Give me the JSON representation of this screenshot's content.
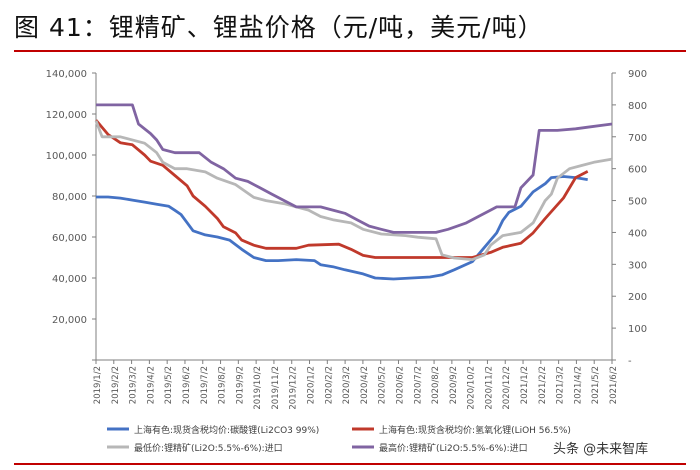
{
  "title": "图 41：锂精矿、锂盐价格（元/吨，美元/吨）",
  "watermark": "头条 @未来智库",
  "colors": {
    "rule": "#c00000"
  },
  "chart_data": {
    "type": "line",
    "title": "",
    "xlabel": "",
    "ylabel_left": "",
    "ylabel_right": "",
    "x_tick_labels": [
      "2019/1/2",
      "2019/2/2",
      "2019/3/2",
      "2019/4/2",
      "2019/5/2",
      "2019/6/2",
      "2019/7/2",
      "2019/8/2",
      "2019/9/2",
      "2019/10/2",
      "2019/11/2",
      "2019/12/2",
      "2020/1/2",
      "2020/2/2",
      "2020/3/2",
      "2020/4/2",
      "2020/5/2",
      "2020/6/2",
      "2020/7/2",
      "2020/8/2",
      "2020/9/2",
      "2020/10/2",
      "2020/11/2",
      "2020/12/2",
      "2021/1/2",
      "2021/2/2",
      "2021/3/2",
      "2021/4/2",
      "2021/5/2",
      "2021/6/2"
    ],
    "y_left": {
      "min": 0,
      "max": 140000,
      "ticks": [
        0,
        20000,
        40000,
        60000,
        80000,
        100000,
        120000,
        140000
      ],
      "tick_labels": [
        "",
        "20,000",
        "40,000",
        "60,000",
        "80,000",
        "100,000",
        "120,000",
        "140,000"
      ]
    },
    "y_right": {
      "min": 0,
      "max": 900,
      "ticks": [
        0,
        100,
        200,
        300,
        400,
        500,
        600,
        700,
        800,
        900
      ],
      "tick_labels": [
        "-",
        "100",
        "200",
        "300",
        "400",
        "500",
        "600",
        "700",
        "800",
        "900"
      ]
    },
    "grid": false,
    "legend_position": "bottom",
    "series": [
      {
        "name": "上海有色:现货含税均价:碳酸锂(Li2CO3 99%)",
        "axis": "left",
        "color": "#4472c4",
        "points": [
          [
            0,
            79500
          ],
          [
            2,
            79500
          ],
          [
            4,
            79000
          ],
          [
            6,
            78000
          ],
          [
            8,
            77000
          ],
          [
            10,
            76000
          ],
          [
            12,
            75000
          ],
          [
            13,
            73000
          ],
          [
            14,
            71000
          ],
          [
            15,
            67000
          ],
          [
            16,
            63000
          ],
          [
            18,
            61000
          ],
          [
            20,
            60000
          ],
          [
            22,
            58500
          ],
          [
            24,
            54000
          ],
          [
            26,
            50000
          ],
          [
            28,
            48500
          ],
          [
            30,
            48500
          ],
          [
            33,
            49000
          ],
          [
            36,
            48500
          ],
          [
            37,
            46500
          ],
          [
            39,
            45500
          ],
          [
            41,
            44000
          ],
          [
            44,
            42000
          ],
          [
            46,
            40000
          ],
          [
            49,
            39500
          ],
          [
            52,
            40000
          ],
          [
            55,
            40500
          ],
          [
            57,
            41500
          ],
          [
            59,
            44000
          ],
          [
            62,
            48000
          ],
          [
            64,
            55000
          ],
          [
            66,
            62000
          ],
          [
            67,
            68000
          ],
          [
            68,
            72000
          ],
          [
            70,
            75000
          ],
          [
            72,
            82000
          ],
          [
            74,
            86000
          ],
          [
            75,
            89000
          ],
          [
            77,
            89500
          ],
          [
            79,
            89000
          ],
          [
            81,
            88000
          ]
        ]
      },
      {
        "name": "上海有色:现货含税均价:氢氧化锂(LiOH 56.5%)",
        "axis": "left",
        "color": "#c0392b",
        "points": [
          [
            0,
            117000
          ],
          [
            2,
            110000
          ],
          [
            4,
            106000
          ],
          [
            6,
            105000
          ],
          [
            8,
            100000
          ],
          [
            9,
            97000
          ],
          [
            11,
            95000
          ],
          [
            13,
            90000
          ],
          [
            15,
            85000
          ],
          [
            16,
            80000
          ],
          [
            18,
            75000
          ],
          [
            20,
            69000
          ],
          [
            21,
            65000
          ],
          [
            23,
            62000
          ],
          [
            24,
            58500
          ],
          [
            26,
            56000
          ],
          [
            28,
            54500
          ],
          [
            33,
            54500
          ],
          [
            35,
            56000
          ],
          [
            40,
            56500
          ],
          [
            42,
            54000
          ],
          [
            44,
            51000
          ],
          [
            46,
            50000
          ],
          [
            48,
            50000
          ],
          [
            55,
            50000
          ],
          [
            62,
            50000
          ],
          [
            65,
            52500
          ],
          [
            67,
            55000
          ],
          [
            70,
            57000
          ],
          [
            72,
            62000
          ],
          [
            74,
            69000
          ],
          [
            77,
            79000
          ],
          [
            79,
            89000
          ],
          [
            81,
            92000
          ]
        ]
      },
      {
        "name": "最低价:锂精矿(Li2O:5.5%-6%):进口",
        "axis": "right",
        "color": "#b7b7b7",
        "points": [
          [
            0,
            750
          ],
          [
            1,
            700
          ],
          [
            4,
            700
          ],
          [
            8,
            680
          ],
          [
            10,
            650
          ],
          [
            11,
            620
          ],
          [
            13,
            600
          ],
          [
            15,
            600
          ],
          [
            18,
            590
          ],
          [
            20,
            570
          ],
          [
            23,
            550
          ],
          [
            26,
            510
          ],
          [
            28,
            500
          ],
          [
            31,
            490
          ],
          [
            33,
            480
          ],
          [
            35,
            470
          ],
          [
            37,
            450
          ],
          [
            39,
            440
          ],
          [
            42,
            430
          ],
          [
            44,
            410
          ],
          [
            47,
            395
          ],
          [
            51,
            390
          ],
          [
            53,
            385
          ],
          [
            56,
            380
          ],
          [
            57,
            330
          ],
          [
            59,
            320
          ],
          [
            62,
            315
          ],
          [
            64,
            330
          ],
          [
            65,
            360
          ],
          [
            67,
            390
          ],
          [
            70,
            400
          ],
          [
            72,
            430
          ],
          [
            74,
            500
          ],
          [
            75,
            520
          ],
          [
            76,
            570
          ],
          [
            78,
            600
          ],
          [
            80,
            610
          ],
          [
            82,
            620
          ],
          [
            85,
            630
          ]
        ]
      },
      {
        "name": "最高价:锂精矿(Li2O:5.5%-6%):进口",
        "axis": "right",
        "color": "#8064a2",
        "points": [
          [
            0,
            800
          ],
          [
            3,
            800
          ],
          [
            6,
            800
          ],
          [
            7,
            740
          ],
          [
            9,
            710
          ],
          [
            10,
            690
          ],
          [
            11,
            660
          ],
          [
            13,
            650
          ],
          [
            17,
            650
          ],
          [
            19,
            620
          ],
          [
            21,
            600
          ],
          [
            23,
            570
          ],
          [
            25,
            560
          ],
          [
            27,
            540
          ],
          [
            29,
            520
          ],
          [
            31,
            500
          ],
          [
            33,
            480
          ],
          [
            37,
            480
          ],
          [
            39,
            470
          ],
          [
            41,
            460
          ],
          [
            43,
            440
          ],
          [
            45,
            420
          ],
          [
            47,
            410
          ],
          [
            49,
            400
          ],
          [
            52,
            400
          ],
          [
            56,
            400
          ],
          [
            58,
            410
          ],
          [
            61,
            430
          ],
          [
            63,
            450
          ],
          [
            65,
            470
          ],
          [
            66,
            480
          ],
          [
            69,
            480
          ],
          [
            70,
            540
          ],
          [
            72,
            580
          ],
          [
            73,
            720
          ],
          [
            76,
            720
          ],
          [
            79,
            725
          ],
          [
            81,
            730
          ],
          [
            85,
            740
          ]
        ]
      }
    ]
  }
}
